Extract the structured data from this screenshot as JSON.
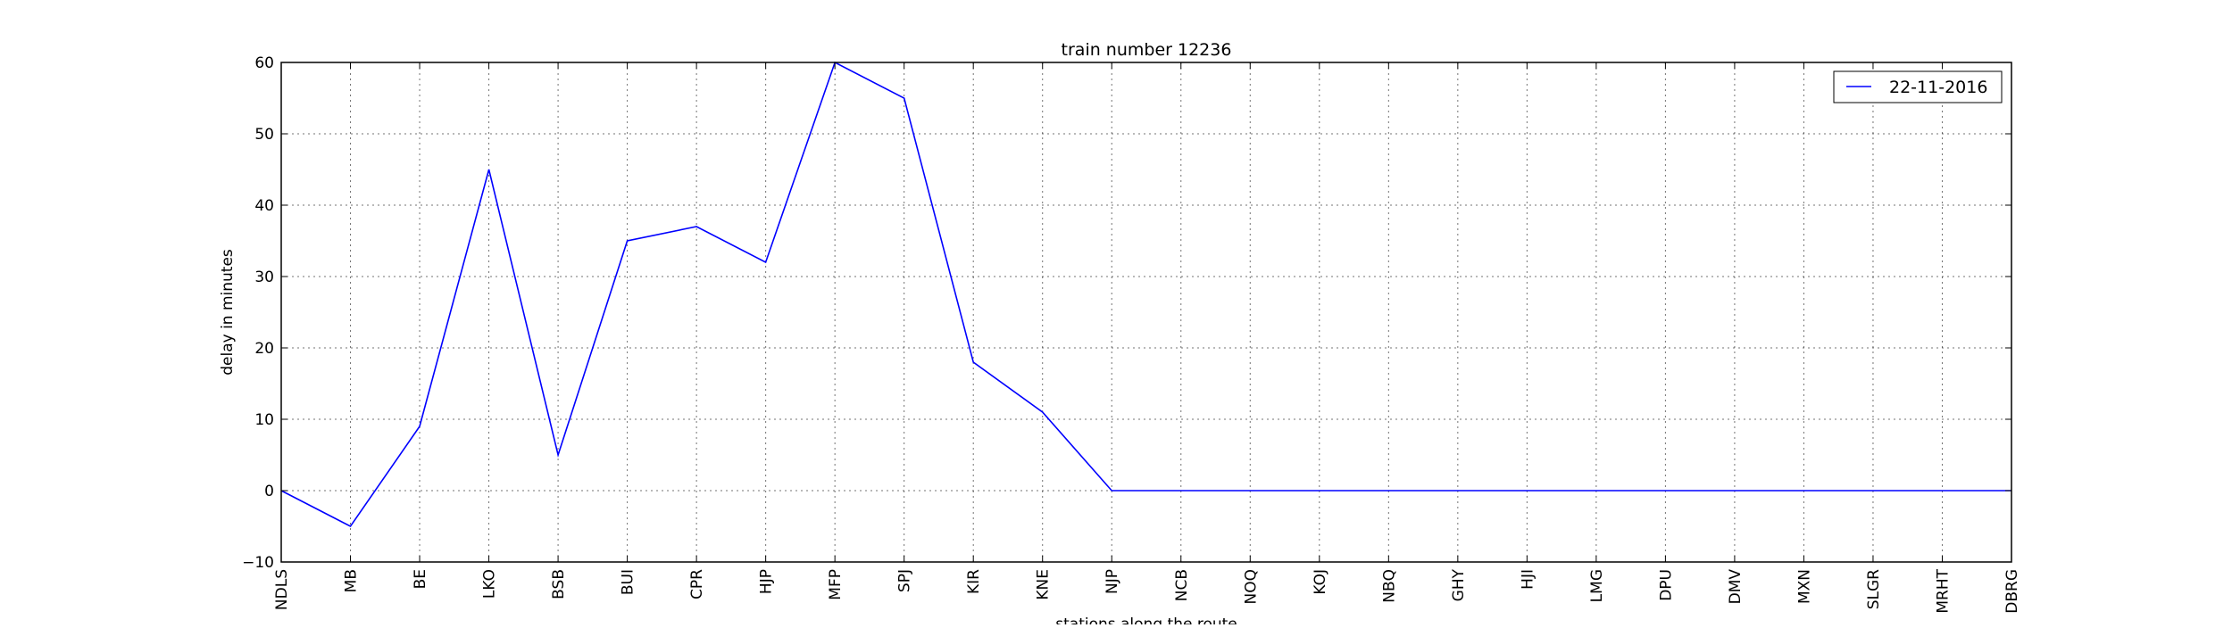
{
  "chart_data": {
    "type": "line",
    "title": "train number 12236",
    "xlabel": "stations along the route",
    "ylabel": "delay in minutes",
    "categories": [
      "NDLS",
      "MB",
      "BE",
      "LKO",
      "BSB",
      "BUI",
      "CPR",
      "HJP",
      "MFP",
      "SPJ",
      "KIR",
      "KNE",
      "NJP",
      "NCB",
      "NOQ",
      "KOJ",
      "NBQ",
      "GHY",
      "HJI",
      "LMG",
      "DPU",
      "DMV",
      "MXN",
      "SLGR",
      "MRHT",
      "DBRG"
    ],
    "series": [
      {
        "name": "22-11-2016",
        "color": "#0000ff",
        "values": [
          0,
          -5,
          9,
          45,
          5,
          35,
          37,
          32,
          60,
          55,
          18,
          11,
          0,
          0,
          0,
          0,
          0,
          0,
          0,
          0,
          0,
          0,
          0,
          0,
          0,
          0
        ]
      }
    ],
    "ylim": [
      -10,
      60
    ],
    "yticks": [
      -10,
      0,
      10,
      20,
      30,
      40,
      50,
      60
    ],
    "grid": true,
    "legend_position": "top-right"
  }
}
